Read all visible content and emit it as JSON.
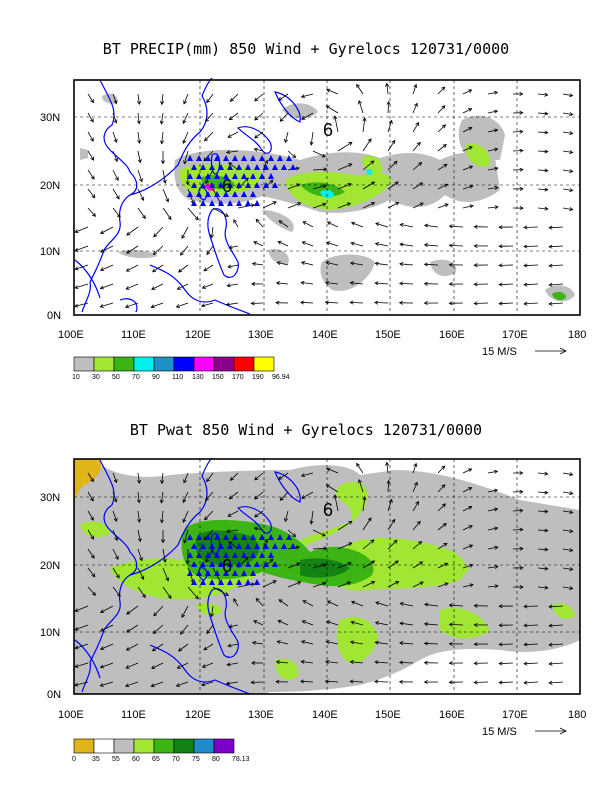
{
  "panel1": {
    "title": "BT PRECIP(mm) 850 Wind + Gyrelocs 120731/0000",
    "lat_labels": [
      "30N",
      "20N",
      "10N",
      "0N"
    ],
    "lon_labels": [
      "100E",
      "110E",
      "120E",
      "130E",
      "140E",
      "150E",
      "160E",
      "170E",
      "180"
    ],
    "vector_ref": "15 M/S",
    "colorbar_labels": [
      "10",
      "30",
      "50",
      "70",
      "90",
      "110",
      "130",
      "150",
      "170",
      "190",
      "96.94"
    ],
    "colorbar_colors": [
      "#bebebe",
      "#a0e632",
      "#3cb413",
      "#00f0f0",
      "#1e90c8",
      "#0000ff",
      "#ff00ff",
      "#8c008c",
      "#ff0000",
      "#ffff00"
    ]
  },
  "panel2": {
    "title": "BT Pwat 850 Wind + Gyrelocs 120731/0000",
    "lat_labels": [
      "30N",
      "20N",
      "10N",
      "0N"
    ],
    "lon_labels": [
      "100E",
      "110E",
      "120E",
      "130E",
      "140E",
      "150E",
      "160E",
      "170E",
      "180"
    ],
    "vector_ref": "15 M/S",
    "colorbar_labels": [
      "0",
      "35",
      "55",
      "60",
      "65",
      "70",
      "75",
      "80",
      "78.13"
    ],
    "colorbar_colors": [
      "#e1b419",
      "#ffffff",
      "#bebebe",
      "#a0e632",
      "#3cb413",
      "#148214",
      "#1e8cc8",
      "#7d00c8"
    ]
  },
  "gyre_marker": "6",
  "colors": {
    "coast": "#0000ff",
    "triangle": "#0000ff",
    "frame": "#000000"
  }
}
